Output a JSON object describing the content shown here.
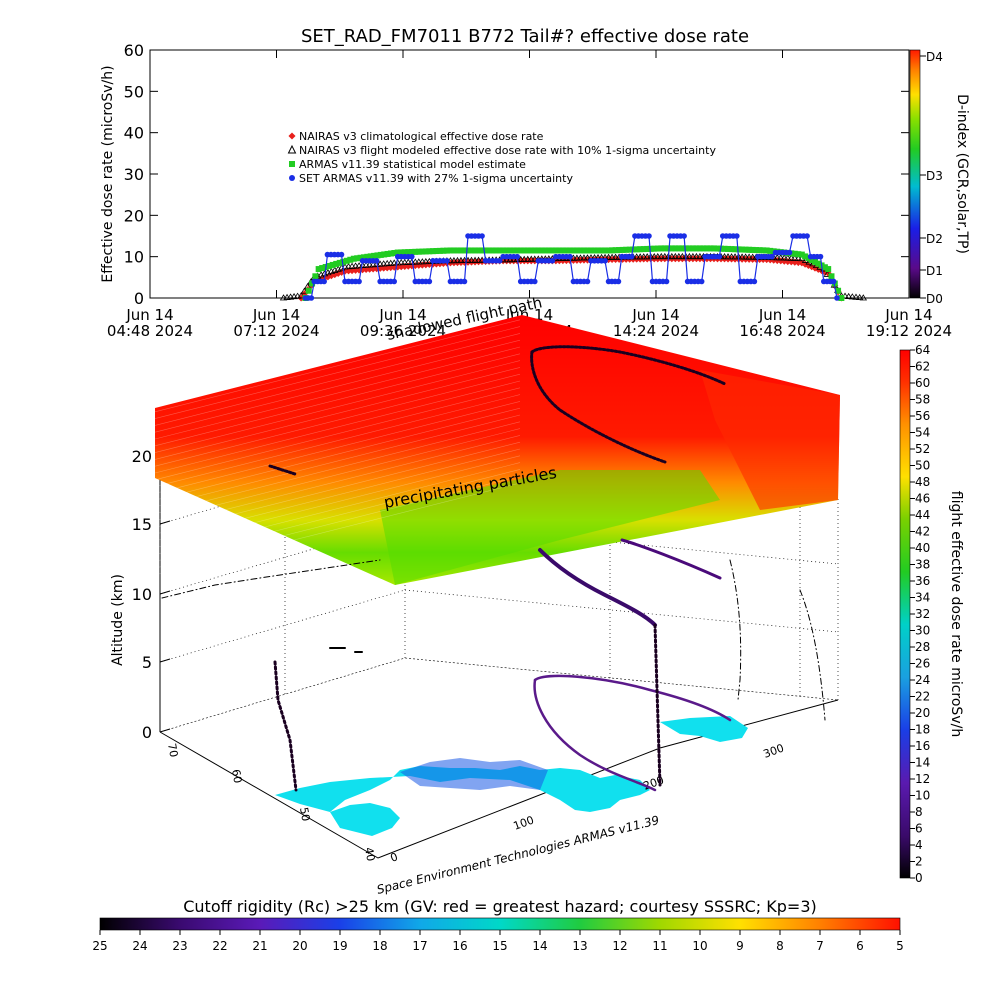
{
  "chart_data": [
    {
      "type": "scatter",
      "title": "SET_RAD_FM7011   B772 Tail#? effective dose rate",
      "ylabel": "Effective dose rate (microSv/h)",
      "ylim": [
        0,
        60
      ],
      "yticks": [
        "0",
        "10",
        "20",
        "30",
        "40",
        "50",
        "60"
      ],
      "xticks": [
        {
          "day": "Jun 14",
          "time": "04:48 2024"
        },
        {
          "day": "Jun 14",
          "time": "07:12 2024"
        },
        {
          "day": "Jun 14",
          "time": "09:36 2024"
        },
        {
          "day": "Jun 14",
          "time": "12:00 2024"
        },
        {
          "day": "Jun 14",
          "time": "14:24 2024"
        },
        {
          "day": "Jun 14",
          "time": "16:48 2024"
        },
        {
          "day": "Jun 14",
          "time": "19:12 2024"
        }
      ],
      "legend_placement": "upper-left",
      "series": [
        {
          "name": "NAIRAS v3 climatological effective dose rate",
          "color": "#e8201c",
          "marker": "diamond",
          "x": [
            "07:40",
            "07:55",
            "08:30",
            "09:30",
            "10:30",
            "11:30",
            "12:30",
            "13:30",
            "14:30",
            "15:30",
            "16:30",
            "17:10",
            "17:40",
            "17:55"
          ],
          "values": [
            0,
            4,
            6.5,
            7.5,
            8.5,
            9,
            9,
            9.3,
            9.5,
            9.5,
            9.3,
            8.5,
            6,
            0
          ]
        },
        {
          "name": "NAIRAS v3 flight modeled effective dose rate with 10% 1-sigma uncertainty",
          "color": "#000000",
          "marker": "triangle",
          "x": [
            "07:20",
            "07:40",
            "07:55",
            "08:30",
            "09:30",
            "10:30",
            "11:30",
            "12:30",
            "13:30",
            "14:30",
            "15:30",
            "16:30",
            "17:10",
            "17:35",
            "17:55",
            "18:20"
          ],
          "values": [
            0,
            0.5,
            5,
            7.5,
            8.5,
            9,
            9.2,
            9.5,
            9.8,
            10,
            10,
            9.8,
            9.5,
            7,
            0.5,
            0
          ]
        },
        {
          "name": "ARMAS v11.39 statistical model estimate",
          "color": "#22cc22",
          "marker": "square",
          "x": [
            "07:45",
            "08:00",
            "08:40",
            "09:30",
            "10:30",
            "11:30",
            "12:30",
            "13:30",
            "14:30",
            "15:30",
            "16:30",
            "17:10",
            "17:40",
            "17:55"
          ],
          "values": [
            0,
            7,
            9.5,
            11,
            11.5,
            11.5,
            11.5,
            11.5,
            12,
            12,
            11.5,
            10.5,
            7,
            0
          ]
        },
        {
          "name": "SET ARMAS v11.39 with 27% 1-sigma uncertainty",
          "color": "#1a2ee6",
          "marker": "circle",
          "x": [
            "07:45",
            "07:55",
            "08:10",
            "08:30",
            "08:50",
            "09:10",
            "09:30",
            "09:50",
            "10:10",
            "10:30",
            "10:50",
            "11:10",
            "11:30",
            "11:50",
            "12:10",
            "12:30",
            "12:50",
            "13:10",
            "13:30",
            "13:45",
            "14:00",
            "14:20",
            "14:40",
            "15:00",
            "15:20",
            "15:40",
            "16:00",
            "16:20",
            "16:40",
            "17:00",
            "17:20",
            "17:35",
            "17:50"
          ],
          "values": [
            0,
            4,
            10.5,
            4,
            9,
            4,
            10,
            4,
            9,
            4,
            15,
            9,
            10,
            4,
            9,
            10,
            4,
            9,
            4,
            10,
            15,
            4,
            15,
            4,
            10,
            15,
            4,
            10,
            11,
            15,
            10,
            4,
            0
          ]
        }
      ],
      "right_axis": {
        "label": "D-index (GCR,solar,TP)",
        "ticks": [
          "D0",
          "D1",
          "D2",
          "D3",
          "D4"
        ]
      }
    },
    {
      "type": "heatmap",
      "zlabel": "Altitude (km)",
      "zticks": [
        "0",
        "5",
        "10",
        "15",
        "20"
      ],
      "lat_ticks": [
        "40",
        "50",
        "60",
        "70"
      ],
      "lon_ticks": [
        "0",
        "100",
        "200",
        "300"
      ],
      "annotations": [
        "shadowed flight path",
        "precipitating particles"
      ],
      "colorbar_label": "flight effective dose rate microSv/h",
      "colorbar_ticks": [
        "0",
        "2",
        "4",
        "6",
        "8",
        "10",
        "12",
        "14",
        "16",
        "18",
        "20",
        "22",
        "24",
        "26",
        "28",
        "30",
        "32",
        "34",
        "36",
        "38",
        "40",
        "42",
        "44",
        "46",
        "48",
        "50",
        "52",
        "54",
        "56",
        "58",
        "60",
        "62",
        "64"
      ],
      "footer": "Space Environment Technologies ARMAS v11.39"
    },
    {
      "type": "heatmap",
      "title": "Cutoff rigidity (Rc) >25 km (GV: red = greatest hazard; courtesy SSSRC; Kp=3)",
      "colorbar_ticks": [
        "25",
        "24",
        "23",
        "22",
        "21",
        "20",
        "19",
        "18",
        "17",
        "16",
        "15",
        "14",
        "13",
        "12",
        "11",
        "10",
        "9",
        "8",
        "7",
        "6",
        "5"
      ]
    }
  ]
}
